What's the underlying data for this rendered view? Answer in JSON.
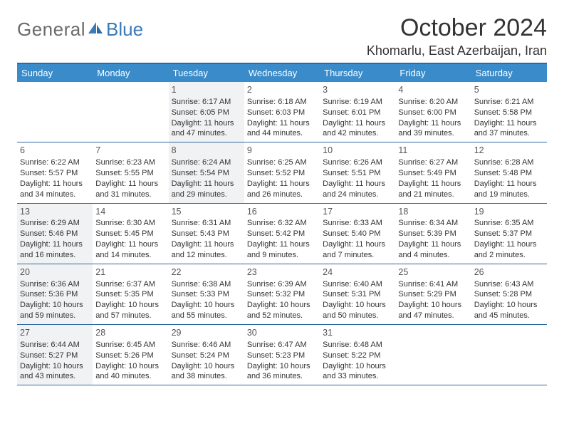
{
  "logo": {
    "general": "General",
    "blue": "Blue"
  },
  "title": "October 2024",
  "location": "Khomarlu, East Azerbaijan, Iran",
  "dow": [
    "Sunday",
    "Monday",
    "Tuesday",
    "Wednesday",
    "Thursday",
    "Friday",
    "Saturday"
  ],
  "colors": {
    "header_bg": "#3a8bc9",
    "border": "#2d6aa3",
    "shaded": "#f1f2f3",
    "text": "#333333",
    "logo_gray": "#6a6a6a",
    "logo_blue": "#3a7ab8"
  },
  "weeks": [
    [
      {
        "day": "",
        "shaded": false,
        "sunrise": "",
        "sunset": "",
        "daylight": ""
      },
      {
        "day": "",
        "shaded": false,
        "sunrise": "",
        "sunset": "",
        "daylight": ""
      },
      {
        "day": "1",
        "shaded": true,
        "sunrise": "Sunrise: 6:17 AM",
        "sunset": "Sunset: 6:05 PM",
        "daylight": "Daylight: 11 hours and 47 minutes."
      },
      {
        "day": "2",
        "shaded": false,
        "sunrise": "Sunrise: 6:18 AM",
        "sunset": "Sunset: 6:03 PM",
        "daylight": "Daylight: 11 hours and 44 minutes."
      },
      {
        "day": "3",
        "shaded": false,
        "sunrise": "Sunrise: 6:19 AM",
        "sunset": "Sunset: 6:01 PM",
        "daylight": "Daylight: 11 hours and 42 minutes."
      },
      {
        "day": "4",
        "shaded": false,
        "sunrise": "Sunrise: 6:20 AM",
        "sunset": "Sunset: 6:00 PM",
        "daylight": "Daylight: 11 hours and 39 minutes."
      },
      {
        "day": "5",
        "shaded": false,
        "sunrise": "Sunrise: 6:21 AM",
        "sunset": "Sunset: 5:58 PM",
        "daylight": "Daylight: 11 hours and 37 minutes."
      }
    ],
    [
      {
        "day": "6",
        "shaded": false,
        "sunrise": "Sunrise: 6:22 AM",
        "sunset": "Sunset: 5:57 PM",
        "daylight": "Daylight: 11 hours and 34 minutes."
      },
      {
        "day": "7",
        "shaded": false,
        "sunrise": "Sunrise: 6:23 AM",
        "sunset": "Sunset: 5:55 PM",
        "daylight": "Daylight: 11 hours and 31 minutes."
      },
      {
        "day": "8",
        "shaded": true,
        "sunrise": "Sunrise: 6:24 AM",
        "sunset": "Sunset: 5:54 PM",
        "daylight": "Daylight: 11 hours and 29 minutes."
      },
      {
        "day": "9",
        "shaded": false,
        "sunrise": "Sunrise: 6:25 AM",
        "sunset": "Sunset: 5:52 PM",
        "daylight": "Daylight: 11 hours and 26 minutes."
      },
      {
        "day": "10",
        "shaded": false,
        "sunrise": "Sunrise: 6:26 AM",
        "sunset": "Sunset: 5:51 PM",
        "daylight": "Daylight: 11 hours and 24 minutes."
      },
      {
        "day": "11",
        "shaded": false,
        "sunrise": "Sunrise: 6:27 AM",
        "sunset": "Sunset: 5:49 PM",
        "daylight": "Daylight: 11 hours and 21 minutes."
      },
      {
        "day": "12",
        "shaded": false,
        "sunrise": "Sunrise: 6:28 AM",
        "sunset": "Sunset: 5:48 PM",
        "daylight": "Daylight: 11 hours and 19 minutes."
      }
    ],
    [
      {
        "day": "13",
        "shaded": true,
        "sunrise": "Sunrise: 6:29 AM",
        "sunset": "Sunset: 5:46 PM",
        "daylight": "Daylight: 11 hours and 16 minutes."
      },
      {
        "day": "14",
        "shaded": false,
        "sunrise": "Sunrise: 6:30 AM",
        "sunset": "Sunset: 5:45 PM",
        "daylight": "Daylight: 11 hours and 14 minutes."
      },
      {
        "day": "15",
        "shaded": false,
        "sunrise": "Sunrise: 6:31 AM",
        "sunset": "Sunset: 5:43 PM",
        "daylight": "Daylight: 11 hours and 12 minutes."
      },
      {
        "day": "16",
        "shaded": false,
        "sunrise": "Sunrise: 6:32 AM",
        "sunset": "Sunset: 5:42 PM",
        "daylight": "Daylight: 11 hours and 9 minutes."
      },
      {
        "day": "17",
        "shaded": false,
        "sunrise": "Sunrise: 6:33 AM",
        "sunset": "Sunset: 5:40 PM",
        "daylight": "Daylight: 11 hours and 7 minutes."
      },
      {
        "day": "18",
        "shaded": false,
        "sunrise": "Sunrise: 6:34 AM",
        "sunset": "Sunset: 5:39 PM",
        "daylight": "Daylight: 11 hours and 4 minutes."
      },
      {
        "day": "19",
        "shaded": false,
        "sunrise": "Sunrise: 6:35 AM",
        "sunset": "Sunset: 5:37 PM",
        "daylight": "Daylight: 11 hours and 2 minutes."
      }
    ],
    [
      {
        "day": "20",
        "shaded": true,
        "sunrise": "Sunrise: 6:36 AM",
        "sunset": "Sunset: 5:36 PM",
        "daylight": "Daylight: 10 hours and 59 minutes."
      },
      {
        "day": "21",
        "shaded": false,
        "sunrise": "Sunrise: 6:37 AM",
        "sunset": "Sunset: 5:35 PM",
        "daylight": "Daylight: 10 hours and 57 minutes."
      },
      {
        "day": "22",
        "shaded": false,
        "sunrise": "Sunrise: 6:38 AM",
        "sunset": "Sunset: 5:33 PM",
        "daylight": "Daylight: 10 hours and 55 minutes."
      },
      {
        "day": "23",
        "shaded": false,
        "sunrise": "Sunrise: 6:39 AM",
        "sunset": "Sunset: 5:32 PM",
        "daylight": "Daylight: 10 hours and 52 minutes."
      },
      {
        "day": "24",
        "shaded": false,
        "sunrise": "Sunrise: 6:40 AM",
        "sunset": "Sunset: 5:31 PM",
        "daylight": "Daylight: 10 hours and 50 minutes."
      },
      {
        "day": "25",
        "shaded": false,
        "sunrise": "Sunrise: 6:41 AM",
        "sunset": "Sunset: 5:29 PM",
        "daylight": "Daylight: 10 hours and 47 minutes."
      },
      {
        "day": "26",
        "shaded": false,
        "sunrise": "Sunrise: 6:43 AM",
        "sunset": "Sunset: 5:28 PM",
        "daylight": "Daylight: 10 hours and 45 minutes."
      }
    ],
    [
      {
        "day": "27",
        "shaded": true,
        "sunrise": "Sunrise: 6:44 AM",
        "sunset": "Sunset: 5:27 PM",
        "daylight": "Daylight: 10 hours and 43 minutes."
      },
      {
        "day": "28",
        "shaded": false,
        "sunrise": "Sunrise: 6:45 AM",
        "sunset": "Sunset: 5:26 PM",
        "daylight": "Daylight: 10 hours and 40 minutes."
      },
      {
        "day": "29",
        "shaded": false,
        "sunrise": "Sunrise: 6:46 AM",
        "sunset": "Sunset: 5:24 PM",
        "daylight": "Daylight: 10 hours and 38 minutes."
      },
      {
        "day": "30",
        "shaded": false,
        "sunrise": "Sunrise: 6:47 AM",
        "sunset": "Sunset: 5:23 PM",
        "daylight": "Daylight: 10 hours and 36 minutes."
      },
      {
        "day": "31",
        "shaded": false,
        "sunrise": "Sunrise: 6:48 AM",
        "sunset": "Sunset: 5:22 PM",
        "daylight": "Daylight: 10 hours and 33 minutes."
      },
      {
        "day": "",
        "shaded": false,
        "sunrise": "",
        "sunset": "",
        "daylight": ""
      },
      {
        "day": "",
        "shaded": false,
        "sunrise": "",
        "sunset": "",
        "daylight": ""
      }
    ]
  ]
}
